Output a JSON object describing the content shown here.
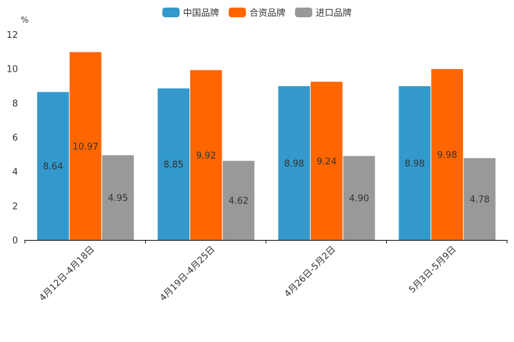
{
  "chart_data": {
    "type": "bar",
    "title": "",
    "ylabel": "%",
    "xlabel": "",
    "ylim": [
      0,
      12
    ],
    "yticks": [
      0,
      2,
      4,
      6,
      8,
      10,
      12
    ],
    "categories": [
      "4月12日-4月18日",
      "4月19日-4月25日",
      "4月26日-5月2日",
      "5月3日-5月9日"
    ],
    "series": [
      {
        "name": "中国品牌",
        "color": "#3399cc",
        "values": [
          8.64,
          8.85,
          8.98,
          8.98
        ],
        "labels": [
          "8.64",
          "8.85",
          "8.98",
          "8.98"
        ]
      },
      {
        "name": "合资品牌",
        "color": "#ff6600",
        "values": [
          10.97,
          9.92,
          9.24,
          9.98
        ],
        "labels": [
          "10.97",
          "9.92",
          "9.24",
          "9.98"
        ]
      },
      {
        "name": "进口品牌",
        "color": "#999999",
        "values": [
          4.95,
          4.62,
          4.9,
          4.78
        ],
        "labels": [
          "4.95",
          "4.62",
          "4.90",
          "4.78"
        ]
      }
    ],
    "legend": "top-center"
  }
}
